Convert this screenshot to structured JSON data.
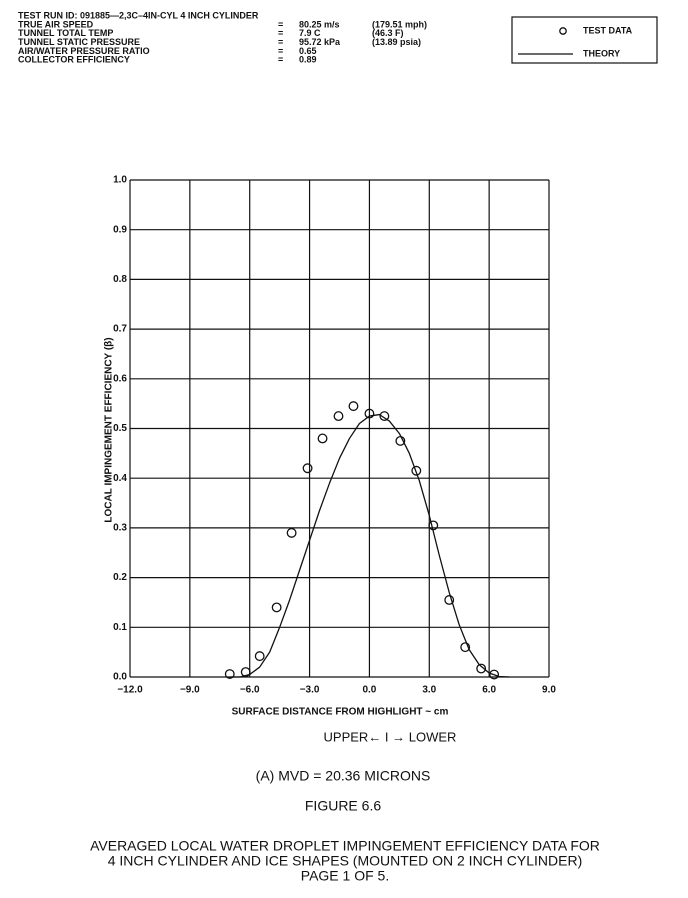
{
  "header": {
    "test_run": "TEST RUN ID:  091885—2,3C–4IN-CYL  4 INCH CYLINDER",
    "rows": [
      [
        "TRUE AIR SPEED",
        "=",
        "80.25 m/s",
        "(179.51 mph)"
      ],
      [
        "TUNNEL TOTAL TEMP",
        "=",
        "7.9 C",
        "(46.3 F)"
      ],
      [
        "TUNNEL STATIC PRESSURE",
        "=",
        "95.72 kPa",
        "(13.89 psia)"
      ],
      [
        "AIR/WATER PRESSURE RATIO",
        "=",
        "0.65"
      ],
      [
        "COLLECTOR EFFICIENCY",
        "=",
        "0.89"
      ]
    ]
  },
  "chart_data": {
    "type": "scatter",
    "x_label": "SURFACE DISTANCE FROM HIGHLIGHT ~ cm",
    "y_label": "LOCAL IMPINGEMENT EFFICIENCY (β)",
    "xlim": [
      -12,
      9
    ],
    "ylim": [
      0,
      1
    ],
    "xticks": [
      {
        "value": -12,
        "label": "−12.0"
      },
      {
        "value": -9,
        "label": "−9.0"
      },
      {
        "value": -6,
        "label": "−6.0"
      },
      {
        "value": -3,
        "label": "−3.0"
      },
      {
        "value": 0,
        "label": "0.0"
      },
      {
        "value": 3,
        "label": "3.0"
      },
      {
        "value": 6,
        "label": "6.0"
      },
      {
        "value": 9,
        "label": "9.0"
      }
    ],
    "yticks": [
      {
        "value": 0,
        "label": "0.0"
      },
      0.1,
      0.2,
      0.3,
      0.4,
      0.5,
      0.6,
      0.7,
      0.8,
      0.9,
      {
        "value": 1,
        "label": "1.0"
      }
    ],
    "grid": true,
    "series": [
      {
        "name": "TEST DATA",
        "type": "scatter",
        "color": "#111111",
        "x": [
          -7.0,
          -6.2,
          -5.5,
          -4.65,
          -3.9,
          -3.1,
          -2.35,
          -1.55,
          -0.8,
          0.0,
          0.75,
          1.55,
          2.35,
          3.2,
          4.0,
          4.8,
          5.6,
          6.25
        ],
        "values": [
          0.006,
          0.01,
          0.042,
          0.14,
          0.29,
          0.42,
          0.48,
          0.525,
          0.545,
          0.53,
          0.525,
          0.475,
          0.415,
          0.305,
          0.155,
          0.06,
          0.017,
          0.005
        ]
      },
      {
        "name": "THEORY",
        "type": "line",
        "color": "#111111",
        "x": [
          -7,
          -6.5,
          -6,
          -5.5,
          -5,
          -4.5,
          -4,
          -3.5,
          -3,
          -2.5,
          -2,
          -1.5,
          -1,
          -0.5,
          0,
          0.5,
          1,
          1.5,
          2,
          2.5,
          3,
          3.5,
          4,
          4.5,
          5,
          5.5,
          6,
          6.5,
          7
        ],
        "values": [
          0,
          0,
          0.005,
          0.02,
          0.05,
          0.1,
          0.155,
          0.215,
          0.275,
          0.335,
          0.39,
          0.44,
          0.48,
          0.51,
          0.525,
          0.528,
          0.515,
          0.49,
          0.45,
          0.395,
          0.325,
          0.245,
          0.17,
          0.105,
          0.055,
          0.025,
          0.008,
          0.001,
          0
        ]
      }
    ]
  },
  "annotation": "UPPER← I → LOWER",
  "subtitle": "(A)   MVD = 20.36 MICRONS",
  "figure": "FIGURE 6.6",
  "caption": [
    "AVERAGED LOCAL WATER DROPLET IMPINGEMENT EFFICIENCY DATA FOR",
    "4 INCH CYLINDER AND ICE SHAPES (MOUNTED ON 2 INCH CYLINDER)",
    "PAGE 1 OF 5."
  ]
}
